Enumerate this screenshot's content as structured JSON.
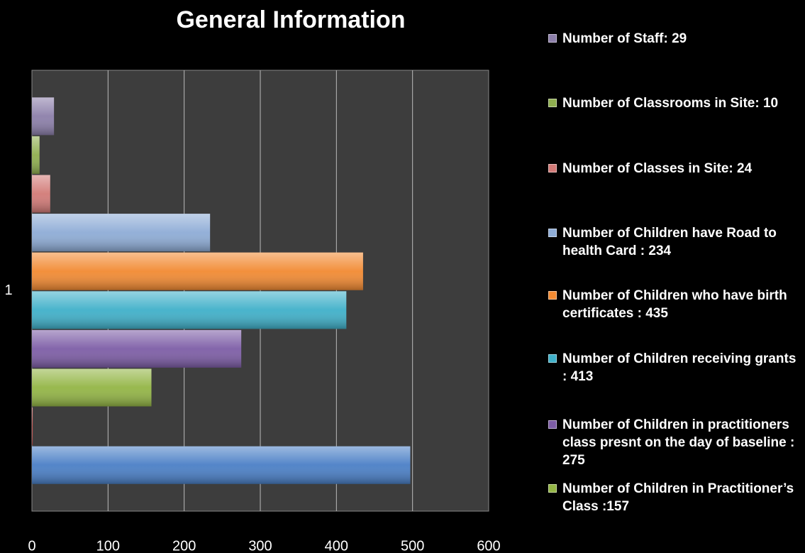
{
  "chart_data": {
    "type": "bar",
    "orientation": "horizontal",
    "title": "General Information",
    "categories": [
      "1"
    ],
    "series": [
      {
        "name": "Number of Staff: 29",
        "color": "#8c7faa",
        "values": [
          29
        ]
      },
      {
        "name": "Number of Classrooms in Site: 10",
        "color": "#8fae4f",
        "values": [
          10
        ]
      },
      {
        "name": "Number of Classes in Site: 24",
        "color": "#d27a77",
        "values": [
          24
        ]
      },
      {
        "name": "Number of Children have Road to health Card : 234",
        "color": "#8eacd6",
        "values": [
          234
        ]
      },
      {
        "name": "Number of Children who have birth certificates : 435",
        "color": "#f28a32",
        "values": [
          435
        ]
      },
      {
        "name": "Number of Children receiving grants : 413",
        "color": "#3fb0c9",
        "values": [
          413
        ]
      },
      {
        "name": "Number of Children in practitioners class presnt on the day of baseline : 275",
        "color": "#7d5da6",
        "values": [
          275
        ]
      },
      {
        "name": "Number of Children in Practitioner’s Class :157",
        "color": "#93b545",
        "values": [
          157
        ]
      },
      {
        "color": "#c0504d",
        "values": [
          1
        ]
      },
      {
        "color": "#4a7fc6",
        "values": [
          497
        ]
      }
    ],
    "xlim": [
      0,
      600
    ],
    "xticks": [
      0,
      100,
      200,
      300,
      400,
      500,
      600
    ],
    "grid": true
  }
}
